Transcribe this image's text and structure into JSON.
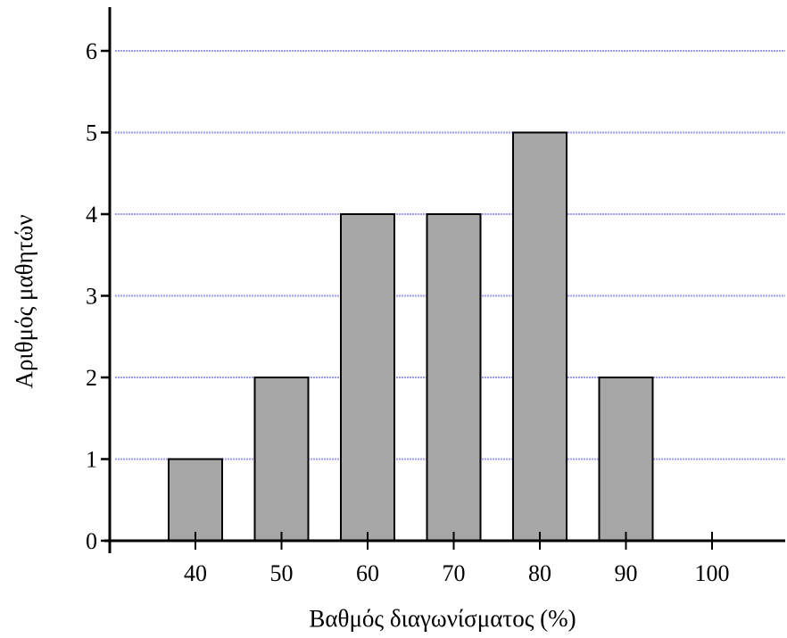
{
  "chart_data": {
    "type": "bar",
    "title": "",
    "xlabel": "Βαθμός διαγωνίσματος (%)",
    "ylabel": "Αριθμός μαθητών",
    "categories": [
      "40",
      "50",
      "60",
      "70",
      "80",
      "90"
    ],
    "values": [
      1,
      2,
      4,
      4,
      5,
      2
    ],
    "x_ticks": [
      40,
      50,
      60,
      70,
      80,
      90,
      100
    ],
    "x_tick_labels": [
      "40",
      "50",
      "60",
      "70",
      "80",
      "90",
      "100"
    ],
    "y_ticks": [
      0,
      1,
      2,
      3,
      4,
      5,
      6
    ],
    "y_tick_labels": [
      "0",
      "1",
      "2",
      "3",
      "4",
      "5",
      "6"
    ],
    "ylim": [
      0,
      6
    ],
    "grid": true,
    "legend": "none",
    "colors": {
      "bar_fill": "#a6a6a6",
      "bar_stroke": "#000000",
      "grid": "#9c9cf0",
      "axis": "#000000"
    }
  }
}
